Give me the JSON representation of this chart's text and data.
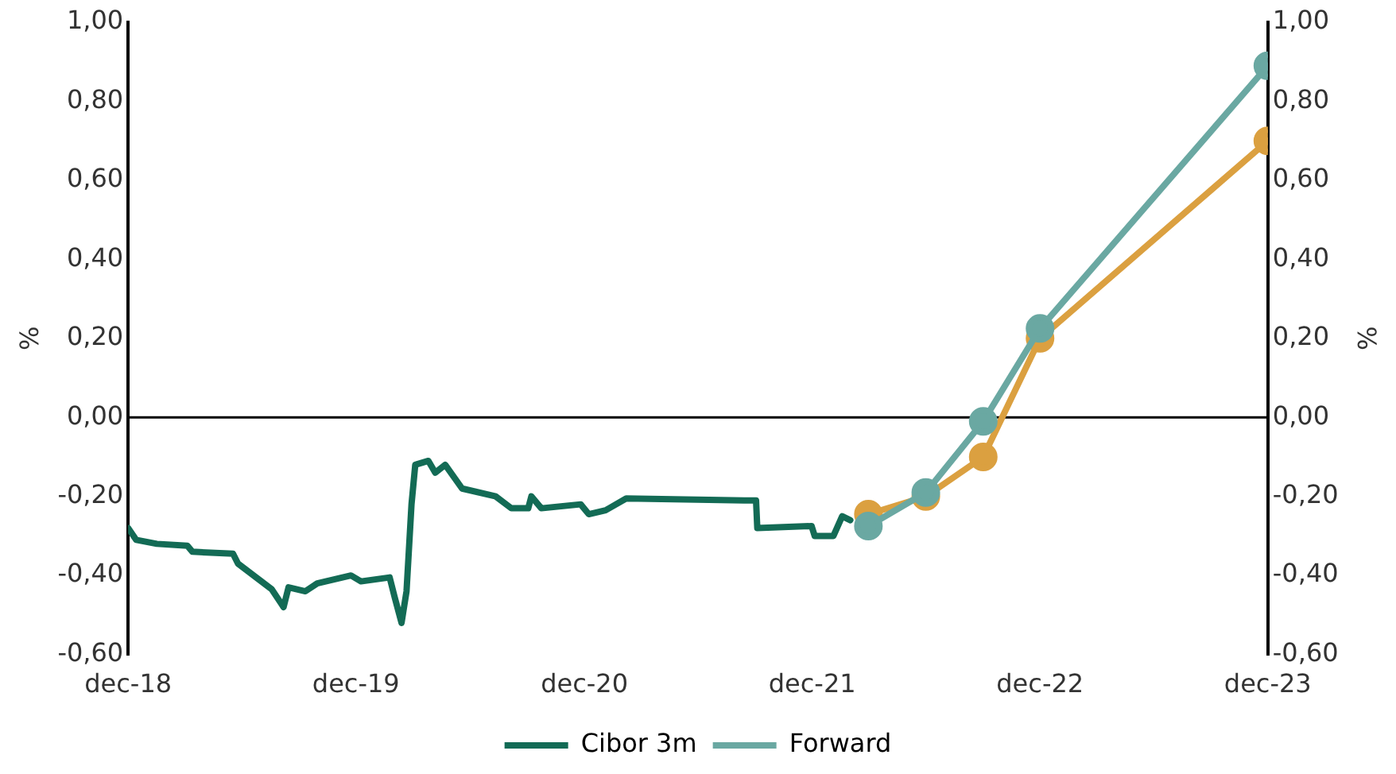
{
  "chart_data": {
    "type": "line",
    "ylabel": "%",
    "y2label": "%",
    "xlim": [
      "2018-12",
      "2023-12"
    ],
    "xticks": [
      {
        "value": "2018-12",
        "label": "dec-18"
      },
      {
        "value": "2019-12",
        "label": "dec-19"
      },
      {
        "value": "2020-12",
        "label": "dec-20"
      },
      {
        "value": "2021-12",
        "label": "dec-21"
      },
      {
        "value": "2022-12",
        "label": "dec-22"
      },
      {
        "value": "2023-12",
        "label": "dec-23"
      }
    ],
    "ylim": [
      -0.6,
      1
    ],
    "yticks": [
      {
        "value": -0.6,
        "label": "-0,60"
      },
      {
        "value": -0.4,
        "label": "-0,40"
      },
      {
        "value": -0.2,
        "label": "-0,20"
      },
      {
        "value": 0,
        "label": "0,00"
      },
      {
        "value": 0.2,
        "label": "0,20"
      },
      {
        "value": 0.4,
        "label": "0,40"
      },
      {
        "value": 0.6,
        "label": "0,60"
      },
      {
        "value": 0.8,
        "label": "0,80"
      },
      {
        "value": 1,
        "label": "1,00"
      }
    ],
    "y2lim": [
      -0.6,
      1
    ],
    "y2ticks": [
      {
        "value": -0.6,
        "label": "-0,60"
      },
      {
        "value": -0.4,
        "label": "-0,40"
      },
      {
        "value": -0.2,
        "label": "-0,20"
      },
      {
        "value": 0,
        "label": "0,00"
      },
      {
        "value": 0.2,
        "label": "0,20"
      },
      {
        "value": 0.4,
        "label": "0,40"
      },
      {
        "value": 0.6,
        "label": "0,60"
      },
      {
        "value": 0.8,
        "label": "0,80"
      },
      {
        "value": 1,
        "label": "1,00"
      }
    ],
    "ref_lines": [
      {
        "axis": "y",
        "value": 0,
        "color": "#000000"
      }
    ],
    "grid": false,
    "legend": "bottom",
    "series": [
      {
        "name": "Cibor 3m",
        "color": "#136b55",
        "marker": "none",
        "x": [
          "2018-12-01",
          "2018-12-14",
          "2019-01-16",
          "2019-03-06",
          "2019-03-14",
          "2019-05-18",
          "2019-05-26",
          "2019-07-19",
          "2019-08-07",
          "2019-08-15",
          "2019-09-11",
          "2019-09-30",
          "2019-11-23",
          "2019-12-09",
          "2020-01-24",
          "2020-02-01",
          "2020-02-12",
          "2020-02-20",
          "2020-02-28",
          "2020-03-05",
          "2020-03-26",
          "2020-04-06",
          "2020-04-22",
          "2020-05-19",
          "2020-07-12",
          "2020-08-06",
          "2020-09-02",
          "2020-09-07",
          "2020-09-23",
          "2020-11-25",
          "2020-12-08",
          "2021-01-04",
          "2021-02-06",
          "2021-08-14",
          "2021-09-02",
          "2021-09-04",
          "2021-11-30",
          "2021-12-05",
          "2022-01-04",
          "2022-01-18",
          "2022-01-31"
        ],
        "values": [
          -0.28,
          -0.31,
          -0.32,
          -0.325,
          -0.34,
          -0.345,
          -0.37,
          -0.435,
          -0.48,
          -0.43,
          -0.44,
          -0.42,
          -0.4,
          -0.415,
          -0.405,
          -0.455,
          -0.52,
          -0.44,
          -0.22,
          -0.12,
          -0.11,
          -0.14,
          -0.12,
          -0.18,
          -0.2,
          -0.23,
          -0.23,
          -0.2,
          -0.23,
          -0.22,
          -0.245,
          -0.235,
          -0.205,
          -0.21,
          -0.21,
          -0.28,
          -0.275,
          -0.3,
          -0.3,
          -0.25,
          -0.26
        ]
      },
      {
        "color": "#dba040",
        "marker": "circle",
        "x": [
          "2022-03",
          "2022-06",
          "2022-09",
          "2022-12",
          "2023-12"
        ],
        "values": [
          -0.245,
          -0.2,
          -0.1,
          0.2,
          0.7
        ]
      },
      {
        "name": "Forward",
        "color": "#6aa8a2",
        "marker": "circle",
        "x": [
          "2022-03",
          "2022-06",
          "2022-09",
          "2022-12",
          "2023-12"
        ],
        "values": [
          -0.275,
          -0.19,
          -0.01,
          0.225,
          0.89
        ]
      }
    ]
  }
}
